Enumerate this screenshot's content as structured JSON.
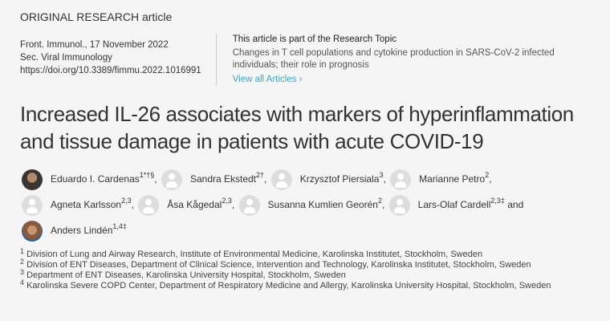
{
  "article_type": "ORIGINAL RESEARCH article",
  "journal_line": "Front. Immunol., 17 November 2022",
  "section": "Sec. Viral Immunology",
  "doi": "https://doi.org/10.3389/fimmu.2022.1016991",
  "research_topic": {
    "lead": "This article is part of the Research Topic",
    "name": "Changes in T cell populations and cytokine production in SARS-CoV-2 infected individuals; their role in prognosis",
    "link": "View all Articles ›"
  },
  "title": "Increased IL-26 associates with markers of hyperinflammation and tissue damage in patients with acute COVID-19",
  "authors": [
    {
      "name": "Eduardo I. Cardenas",
      "sup": "1*†§",
      "sep": ",",
      "avatar": "photo"
    },
    {
      "name": "Sandra Ekstedt",
      "sup": "2†",
      "sep": ",",
      "avatar": "generic"
    },
    {
      "name": "Krzysztof Piersiala",
      "sup": "3",
      "sep": ",",
      "avatar": "generic"
    },
    {
      "name": "Marianne Petro",
      "sup": "2",
      "sep": ",",
      "avatar": "generic"
    },
    {
      "name": "Agneta Karlsson",
      "sup": "2,3",
      "sep": ",",
      "avatar": "generic"
    },
    {
      "name": "Åsa Kågedal",
      "sup": "2,3",
      "sep": ",",
      "avatar": "generic"
    },
    {
      "name": "Susanna Kumlien Georén",
      "sup": "2",
      "sep": ",",
      "avatar": "generic"
    },
    {
      "name": "Lars-Olaf Cardell",
      "sup": "2,3‡",
      "sep": " and",
      "avatar": "generic"
    },
    {
      "name": "Anders Lindén",
      "sup": "1,4‡",
      "sep": "",
      "avatar": "photo"
    }
  ],
  "affiliations": [
    {
      "num": "1",
      "text": "Division of Lung and Airway Research, Institute of Environmental Medicine, Karolinska Institutet, Stockholm, Sweden"
    },
    {
      "num": "2",
      "text": "Division of ENT Diseases, Department of Clinical Science, Intervention and Technology, Karolinska Institutet, Stockholm, Sweden"
    },
    {
      "num": "3",
      "text": "Department of ENT Diseases, Karolinska University Hospital, Stockholm, Sweden"
    },
    {
      "num": "4",
      "text": "Karolinska Severe COPD Center, Department of Respiratory Medicine and Allergy, Karolinska University Hospital, Stockholm, Sweden"
    }
  ]
}
